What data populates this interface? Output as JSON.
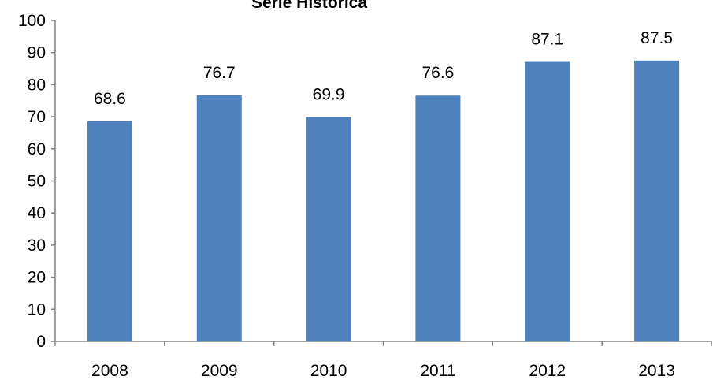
{
  "chart_data": {
    "type": "bar",
    "title": "Serie Histórica",
    "xlabel": "",
    "ylabel": "",
    "categories": [
      "2008",
      "2009",
      "2010",
      "2011",
      "2012",
      "2013"
    ],
    "values": [
      68.6,
      76.7,
      69.9,
      76.6,
      87.1,
      87.5
    ],
    "data_labels": [
      "68.6",
      "76.7",
      "69.9",
      "76.6",
      "87.1",
      "87.5"
    ],
    "ylim": [
      0,
      100
    ],
    "yticks": [
      0,
      10,
      20,
      30,
      40,
      50,
      60,
      70,
      80,
      90,
      100
    ],
    "ytick_labels": [
      "0",
      "10",
      "20",
      "30",
      "40",
      "50",
      "60",
      "70",
      "80",
      "90",
      "100"
    ],
    "grid": false,
    "legend": "none",
    "colors": {
      "bar": "#4F81BD",
      "axis": "#808080"
    }
  }
}
